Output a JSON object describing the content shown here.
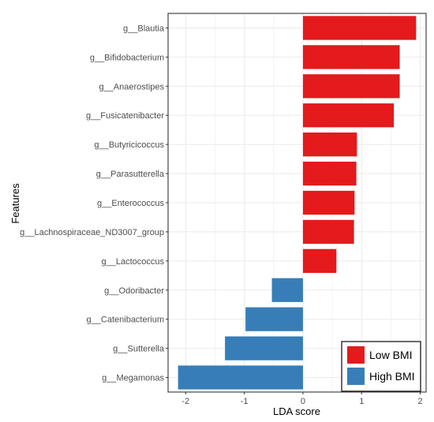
{
  "chart_data": {
    "type": "bar",
    "orientation": "horizontal",
    "xlabel": "LDA score",
    "ylabel": "Features",
    "xlim": [
      -2.3,
      2.1
    ],
    "xticks": [
      -2,
      -1,
      0,
      1,
      2
    ],
    "xtick_labels": [
      "-2",
      "-1",
      "0",
      "1",
      "2"
    ],
    "grid": true,
    "legend_position": "bottom-right",
    "categories": [
      "g__Blautia",
      "g__Bifidobacterium",
      "g__Anaerostipes",
      "g__Fusicatenibacter",
      "g__Butyricicoccus",
      "g__Parasutterella",
      "g__Enterococcus",
      "g__Lachnospiraceae_ND3007_group",
      "g__Lactococcus",
      "g__Odoribacter",
      "g__Catenibacterium",
      "g__Sutterella",
      "g__Megamonas"
    ],
    "values": [
      1.93,
      1.65,
      1.65,
      1.55,
      0.92,
      0.91,
      0.88,
      0.87,
      0.57,
      -0.53,
      -0.98,
      -1.33,
      -2.13
    ],
    "groups": [
      "Low BMI",
      "Low BMI",
      "Low BMI",
      "Low BMI",
      "Low BMI",
      "Low BMI",
      "Low BMI",
      "Low BMI",
      "Low BMI",
      "High BMI",
      "High BMI",
      "High BMI",
      "High BMI"
    ],
    "series": [
      {
        "name": "Low BMI",
        "color": "#e41a1c"
      },
      {
        "name": "High BMI",
        "color": "#377eb8"
      }
    ],
    "colors": {
      "panel_border": "#333333",
      "grid": "#ebebeb",
      "legend_border": "#1a1a1a"
    }
  }
}
